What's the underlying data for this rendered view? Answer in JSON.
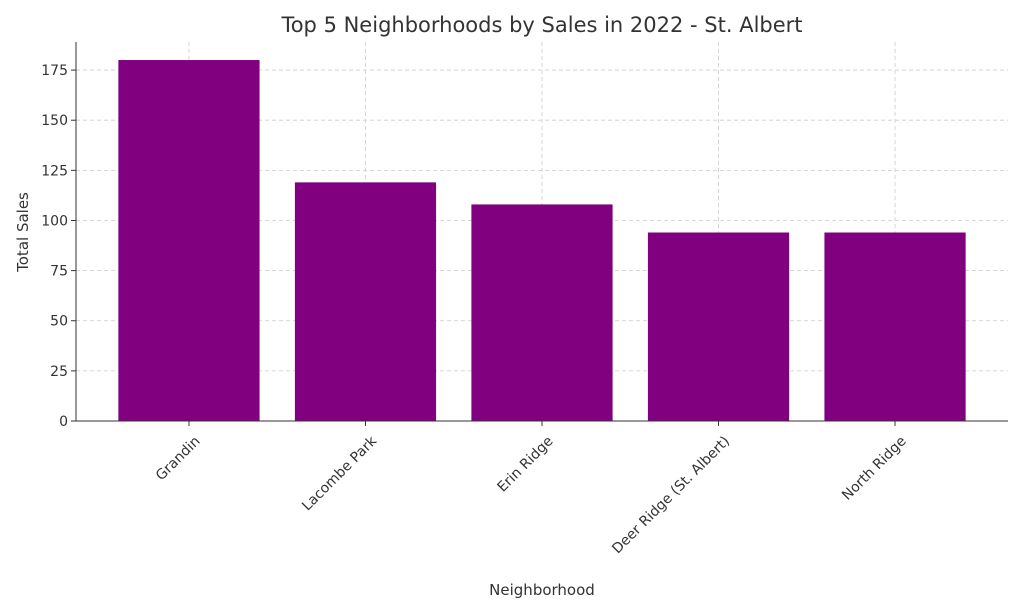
{
  "chart_data": {
    "type": "bar",
    "title": "Top 5 Neighborhoods by Sales in 2022 - St. Albert",
    "x_label": "Neighborhood",
    "y_label": "Total Sales",
    "categories": [
      "Grandin",
      "Lacombe Park",
      "Erin Ridge",
      "Deer Ridge (St. Albert)",
      "North Ridge"
    ],
    "values": [
      180,
      119,
      108,
      94,
      94
    ],
    "color": "#800080",
    "ylim": [
      0,
      189
    ],
    "yticks": [
      0,
      25,
      50,
      75,
      100,
      125,
      150,
      175
    ],
    "grid": true
  }
}
